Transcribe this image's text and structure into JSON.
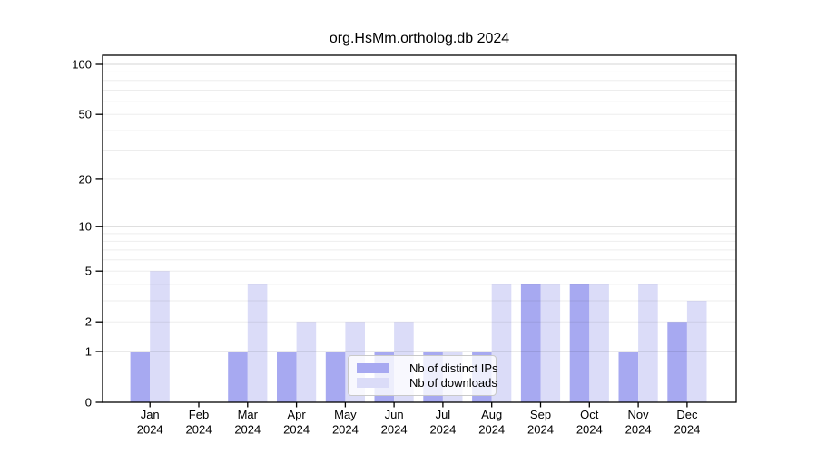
{
  "chart_data": {
    "type": "bar",
    "title": "org.HsMm.ortholog.db 2024",
    "categories": [
      "Jan 2024",
      "Feb 2024",
      "Mar 2024",
      "Apr 2024",
      "May 2024",
      "Jun 2024",
      "Jul 2024",
      "Aug 2024",
      "Sep 2024",
      "Oct 2024",
      "Nov 2024",
      "Dec 2024"
    ],
    "series": [
      {
        "name": "Nb of distinct IPs",
        "color": "#a7a9f1",
        "values": [
          1,
          0,
          1,
          1,
          1,
          1,
          1,
          1,
          4,
          4,
          1,
          2
        ]
      },
      {
        "name": "Nb of downloads",
        "color": "#dbdcf8",
        "values": [
          5,
          0,
          4,
          2,
          2,
          2,
          1,
          4,
          4,
          4,
          4,
          3
        ]
      }
    ],
    "xlabel": "",
    "ylabel": "",
    "yticks": [
      0,
      1,
      2,
      5,
      10,
      20,
      50,
      100
    ],
    "ylim": [
      0,
      100
    ],
    "yscale": "log1p",
    "grid": true,
    "legend_position": "bottom-center",
    "axis_color": "#000000",
    "grid_minor_color": "rgba(0,0,0,0.07)",
    "grid_major_color": "rgba(0,0,0,0.17)"
  }
}
